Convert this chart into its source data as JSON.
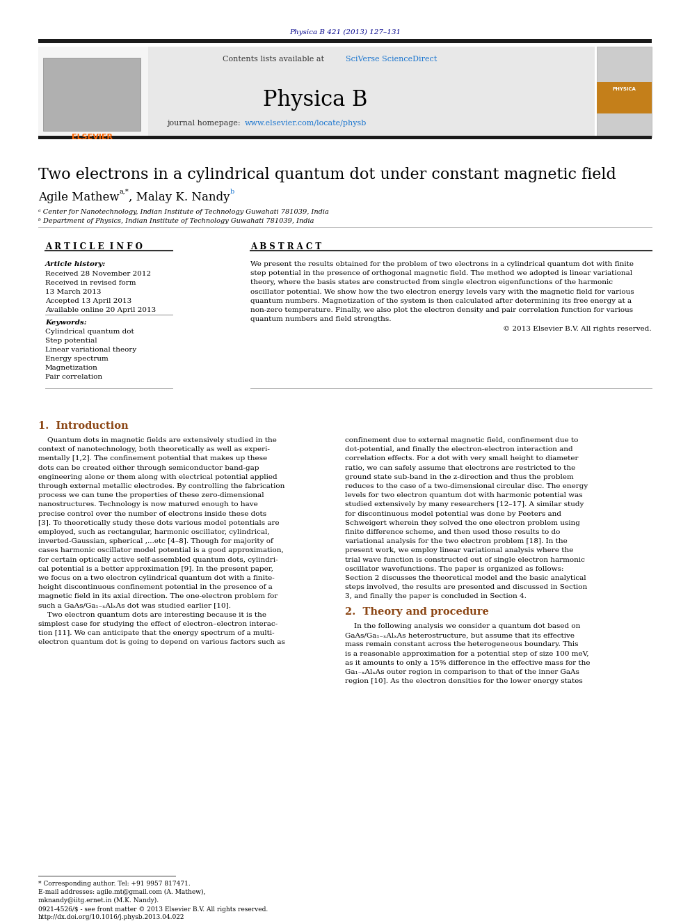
{
  "page_journal_ref": "Physica B 421 (2013) 127–131",
  "journal_name": "Physica B",
  "contents_text": "Contents lists available at SciVerse ScienceDirect",
  "journal_homepage": "journal homepage: www.elsevier.com/locate/physb",
  "title": "Two electrons in a cylindrical quantum dot under constant magnetic field",
  "affil_a": "ᵃ Center for Nanotechnology, Indian Institute of Technology Guwahati 781039, India",
  "affil_b": "ᵇ Department of Physics, Indian Institute of Technology Guwahati 781039, India",
  "article_info_title": "A R T I C L E  I N F O",
  "abstract_title": "A B S T R A C T",
  "article_history_label": "Article history:",
  "received1": "Received 28 November 2012",
  "received2": "Received in revised form",
  "received2b": "13 March 2013",
  "accepted": "Accepted 13 April 2013",
  "available": "Available online 20 April 2013",
  "keywords_label": "Keywords:",
  "keyword1": "Cylindrical quantum dot",
  "keyword2": "Step potential",
  "keyword3": "Linear variational theory",
  "keyword4": "Energy spectrum",
  "keyword5": "Magnetization",
  "keyword6": "Pair correlation",
  "copyright": "© 2013 Elsevier B.V. All rights reserved.",
  "section1_title": "1.  Introduction",
  "section2_title": "2.  Theory and procedure",
  "footnote_corresp": "* Corresponding author. Tel: +91 9957 817471.",
  "footnote_email": "E-mail addresses: agile.mt@gmail.com (A. Mathew),",
  "footnote_email2": "mknandy@iitg.ernet.in (M.K. Nandy).",
  "footnote_license": "0921-4526/$ - see front matter © 2013 Elsevier B.V. All rights reserved.",
  "footnote_doi": "http://dx.doi.org/10.1016/j.physb.2013.04.022",
  "bg_color": "#ffffff",
  "black_bar_color": "#1a1a1a",
  "journal_ref_color": "#00008b",
  "sciverse_color": "#1a75cf",
  "url_color": "#1a75cf",
  "section_title_color": "#8B4513",
  "text_color": "#000000",
  "abstract_lines": [
    "We present the results obtained for the problem of two electrons in a cylindrical quantum dot with finite",
    "step potential in the presence of orthogonal magnetic field. The method we adopted is linear variational",
    "theory, where the basis states are constructed from single electron eigenfunctions of the harmonic",
    "oscillator potential. We show how the two electron energy levels vary with the magnetic field for various",
    "quantum numbers. Magnetization of the system is then calculated after determining its free energy at a",
    "non-zero temperature. Finally, we also plot the electron density and pair correlation function for various",
    "quantum numbers and field strengths."
  ],
  "col1_lines": [
    "    Quantum dots in magnetic fields are extensively studied in the",
    "context of nanotechnology, both theoretically as well as experi-",
    "mentally [1,2]. The confinement potential that makes up these",
    "dots can be created either through semiconductor band-gap",
    "engineering alone or them along with electrical potential applied",
    "through external metallic electrodes. By controlling the fabrication",
    "process we can tune the properties of these zero-dimensional",
    "nanostructures. Technology is now matured enough to have",
    "precise control over the number of electrons inside these dots",
    "[3]. To theoretically study these dots various model potentials are",
    "employed, such as rectangular, harmonic oscillator, cylindrical,",
    "inverted-Gaussian, spherical ,...etc [4–8]. Though for majority of",
    "cases harmonic oscillator model potential is a good approximation,",
    "for certain optically active self-assembled quantum dots, cylindri-",
    "cal potential is a better approximation [9]. In the present paper,",
    "we focus on a two electron cylindrical quantum dot with a finite-",
    "height discontinuous confinement potential in the presence of a",
    "magnetic field in its axial direction. The one-electron problem for",
    "such a GaAs/Ga₁₋ₓAlₓAs dot was studied earlier [10].",
    "    Two electron quantum dots are interesting because it is the",
    "simplest case for studying the effect of electron–electron interac-",
    "tion [11]. We can anticipate that the energy spectrum of a multi-",
    "electron quantum dot is going to depend on various factors such as"
  ],
  "col2_intro_lines": [
    "confinement due to external magnetic field, confinement due to",
    "dot-potential, and finally the electron-electron interaction and",
    "correlation effects. For a dot with very small height to diameter",
    "ratio, we can safely assume that electrons are restricted to the",
    "ground state sub-band in the z-direction and thus the problem",
    "reduces to the case of a two-dimensional circular disc. The energy",
    "levels for two electron quantum dot with harmonic potential was",
    "studied extensively by many researchers [12–17]. A similar study",
    "for discontinuous model potential was done by Peeters and",
    "Schweigert wherein they solved the one electron problem using",
    "finite difference scheme, and then used those results to do",
    "variational analysis for the two electron problem [18]. In the",
    "present work, we employ linear variational analysis where the",
    "trial wave function is constructed out of single electron harmonic",
    "oscillator wavefunctions. The paper is organized as follows:",
    "Section 2 discusses the theoretical model and the basic analytical",
    "steps involved, the results are presented and discussed in Section",
    "3, and finally the paper is concluded in Section 4."
  ],
  "sec2_lines": [
    "    In the following analysis we consider a quantum dot based on",
    "GaAs/Ga₁₋ₓAlₓAs heterostructure, but assume that its effective",
    "mass remain constant across the heterogeneous boundary. This",
    "is a reasonable approximation for a potential step of size 100 meV,",
    "as it amounts to only a 15% difference in the effective mass for the",
    "Ga₁₋ₓAlₓAs outer region in comparison to that of the inner GaAs",
    "region [10]. As the electron densities for the lower energy states"
  ]
}
